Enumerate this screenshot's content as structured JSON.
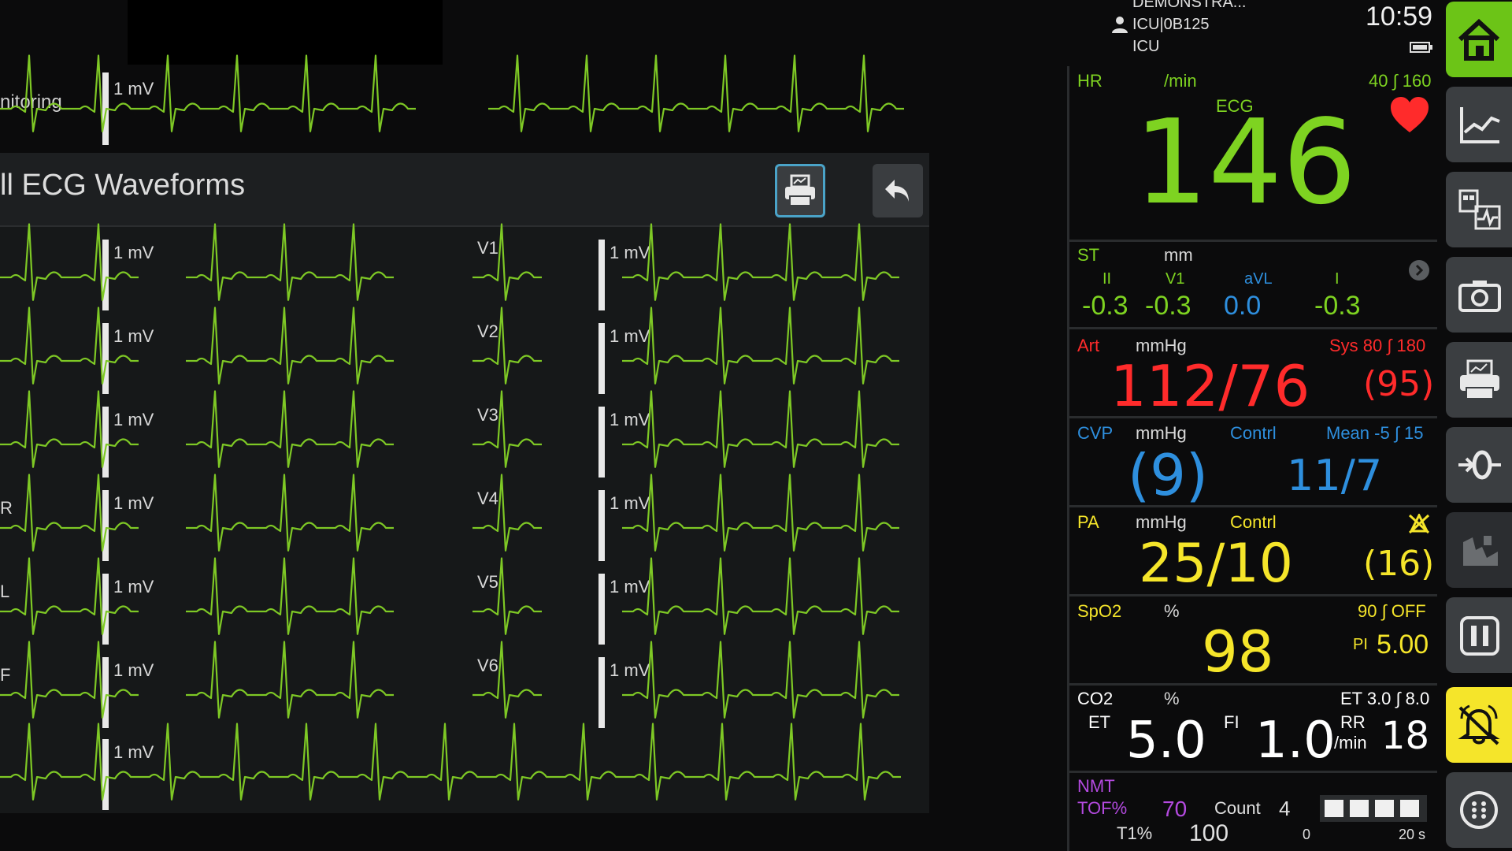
{
  "header": {
    "demo_label": "DEMONSTRA...",
    "bed": "ICU|0B125",
    "unit": "ICU",
    "time": "10:59"
  },
  "top_strip": {
    "label": "nitoring",
    "cal": "1 mV"
  },
  "panel": {
    "title": "ll ECG Waveforms",
    "cal": "1 mV",
    "left_leads": [
      "",
      "",
      "",
      "R",
      "L",
      "F"
    ],
    "right_leads": [
      "V1",
      "V2",
      "V3",
      "V4",
      "V5",
      "V6"
    ],
    "bottom_cal": "1 mV"
  },
  "params": {
    "hr": {
      "label": "HR",
      "unit": "/min",
      "source": "ECG",
      "limits": "40 ∫ 160",
      "value": "146",
      "color": "#7ed321"
    },
    "st": {
      "label": "ST",
      "unit": "mm",
      "leads": [
        {
          "name": "II",
          "value": "-0.3",
          "color": "#7ed321"
        },
        {
          "name": "V1",
          "value": "-0.3",
          "color": "#7ed321"
        },
        {
          "name": "aVL",
          "value": "0.0",
          "color": "#2e8fde"
        },
        {
          "name": "I",
          "value": "-0.3",
          "color": "#7ed321"
        }
      ]
    },
    "art": {
      "label": "Art",
      "unit": "mmHg",
      "limits": "Sys 80 ∫ 180",
      "value": "112/76",
      "mean": "(95)",
      "color": "#ff2b2b"
    },
    "cvp": {
      "label": "CVP",
      "unit": "mmHg",
      "contrl": "Contrl",
      "limits": "Mean -5 ∫ 15",
      "value": "(9)",
      "contrl_value": "11/7",
      "color": "#2e8fde"
    },
    "pa": {
      "label": "PA",
      "unit": "mmHg",
      "contrl": "Contrl",
      "value": "25/10",
      "mean": "(16)",
      "color": "#f5e52a"
    },
    "spo2": {
      "label": "SpO2",
      "unit": "%",
      "limits": "90 ∫ OFF",
      "value": "98",
      "pi_label": "PI",
      "pi_value": "5.00",
      "color": "#f5e52a"
    },
    "co2": {
      "label": "CO2",
      "unit": "%",
      "limits": "ET 3.0 ∫ 8.0",
      "et_label": "ET",
      "et_value": "5.0",
      "fi_label": "FI",
      "fi_value": "1.0",
      "rr_label": "RR",
      "rr_unit": "/min",
      "rr_value": "18",
      "color": "#ffffff"
    },
    "nmt": {
      "label": "NMT",
      "tof_label": "TOF%",
      "tof_value": "70",
      "count_label": "Count",
      "count_value": "4",
      "t1_label": "T1%",
      "t1_value": "100",
      "scale_min": "0",
      "scale_max": "20 s",
      "color": "#b44ae0"
    }
  },
  "toolbar": {
    "items": [
      "home",
      "trends",
      "patient-data",
      "snapshot",
      "print",
      "procedures",
      "review",
      "pause",
      "alarm-silence",
      "more"
    ]
  }
}
